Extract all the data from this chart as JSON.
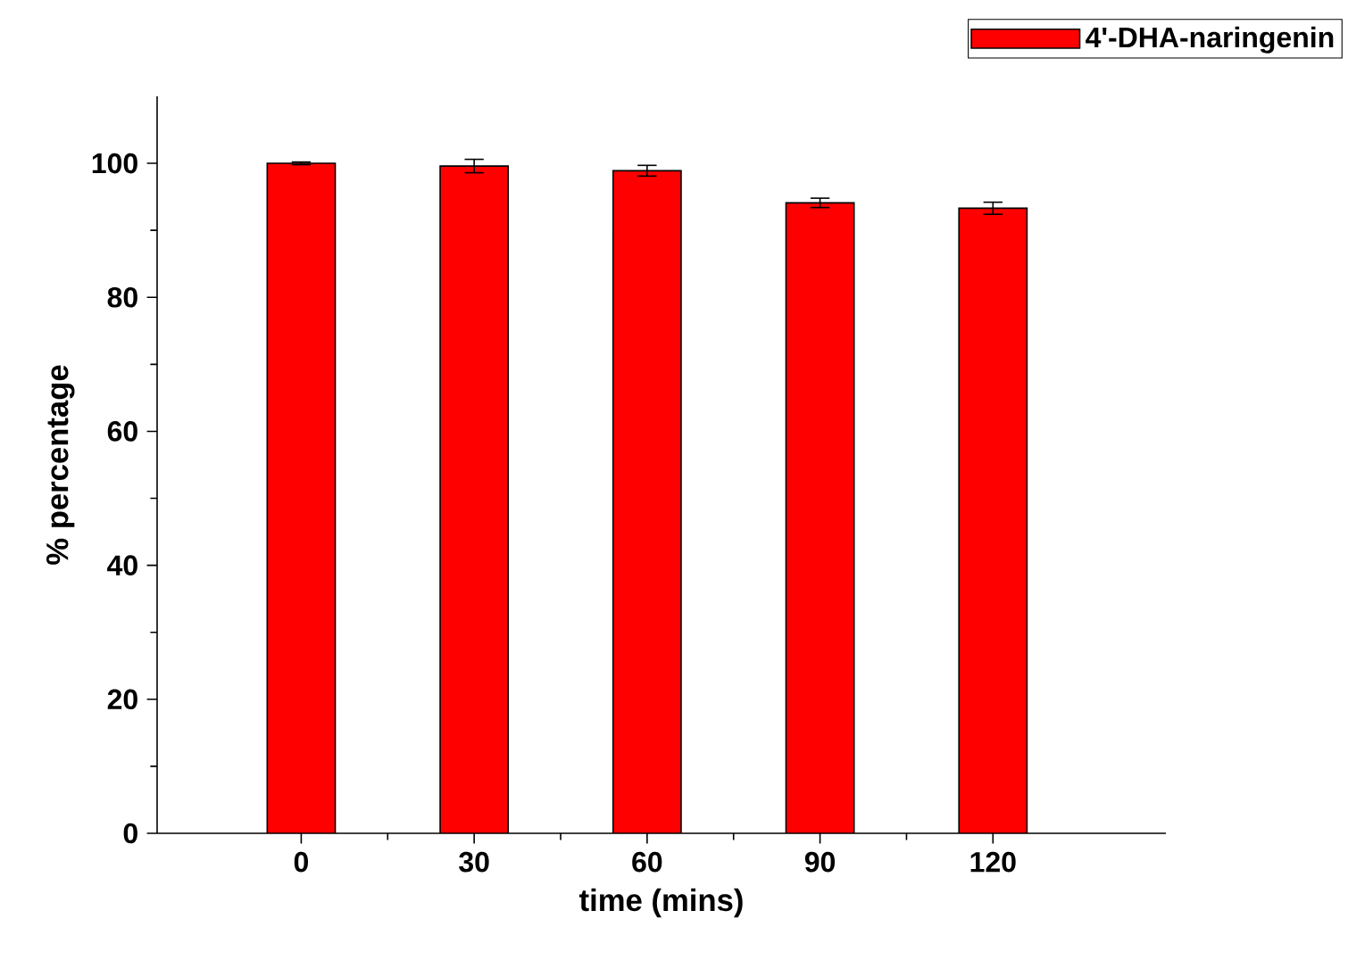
{
  "chart_data": {
    "type": "bar",
    "xlabel": "time (mins)",
    "ylabel": "% percentage",
    "x": [
      0,
      30,
      60,
      90,
      120
    ],
    "series": [
      {
        "name": "4'-DHA-naringenin",
        "color": "#ff0000",
        "values": [
          100,
          99.6,
          98.9,
          94.1,
          93.3
        ],
        "errors": [
          0.2,
          1.0,
          0.8,
          0.7,
          0.9
        ]
      }
    ],
    "xlim": [
      -25,
      150
    ],
    "ylim": [
      0,
      110
    ],
    "xticks": [
      0,
      30,
      60,
      90,
      120
    ],
    "yticks": [
      0,
      20,
      40,
      60,
      80,
      100
    ],
    "legend": "top right"
  }
}
